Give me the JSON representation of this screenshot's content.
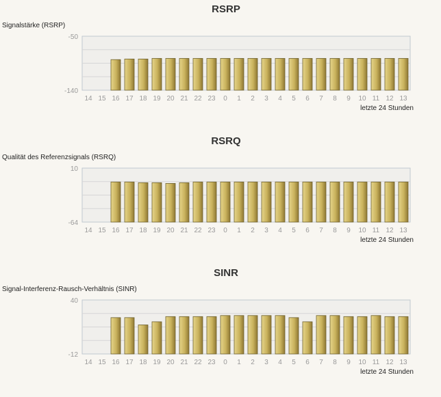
{
  "chart_data": [
    {
      "type": "bar",
      "title": "RSRP",
      "ylabel": "Signalstärke (RSRP)",
      "xlabel": "letzte 24 Stunden",
      "ylim": [
        -140,
        -50
      ],
      "categories": [
        "14",
        "15",
        "16",
        "17",
        "18",
        "19",
        "20",
        "21",
        "22",
        "23",
        "0",
        "1",
        "2",
        "3",
        "4",
        "5",
        "6",
        "7",
        "8",
        "9",
        "10",
        "11",
        "12",
        "13"
      ],
      "values": [
        null,
        null,
        -89,
        -88,
        -88,
        -87,
        -87,
        -87,
        -87,
        -87,
        -87,
        -87,
        -87,
        -87,
        -87,
        -87,
        -87,
        -87,
        -87,
        -87,
        -87,
        -87,
        -87,
        -87
      ],
      "grid": true
    },
    {
      "type": "bar",
      "title": "RSRQ",
      "ylabel": "Qualität des Referenzsignals (RSRQ)",
      "xlabel": "letzte 24 Stunden",
      "ylim": [
        -64,
        10
      ],
      "categories": [
        "14",
        "15",
        "16",
        "17",
        "18",
        "19",
        "20",
        "21",
        "22",
        "23",
        "0",
        "1",
        "2",
        "3",
        "4",
        "5",
        "6",
        "7",
        "8",
        "9",
        "10",
        "11",
        "12",
        "13"
      ],
      "values": [
        null,
        null,
        -9,
        -9,
        -10,
        -10,
        -11,
        -10,
        -9,
        -9,
        -9,
        -9,
        -9,
        -9,
        -9,
        -9,
        -9,
        -9,
        -9,
        -9,
        -9,
        -9,
        -9,
        -9
      ],
      "grid": true
    },
    {
      "type": "bar",
      "title": "SINR",
      "ylabel": "Signal-Interferenz-Rausch-Verhältnis (SINR)",
      "xlabel": "letzte 24 Stunden",
      "ylim": [
        -12,
        40
      ],
      "categories": [
        "14",
        "15",
        "16",
        "17",
        "18",
        "19",
        "20",
        "21",
        "22",
        "23",
        "0",
        "1",
        "2",
        "3",
        "4",
        "5",
        "6",
        "7",
        "8",
        "9",
        "10",
        "11",
        "12",
        "13"
      ],
      "values": [
        null,
        null,
        23,
        23,
        16,
        19,
        24,
        24,
        24,
        24,
        25,
        25,
        25,
        25,
        25,
        23,
        19,
        25,
        25,
        24,
        24,
        25,
        24,
        24
      ],
      "grid": true
    }
  ]
}
